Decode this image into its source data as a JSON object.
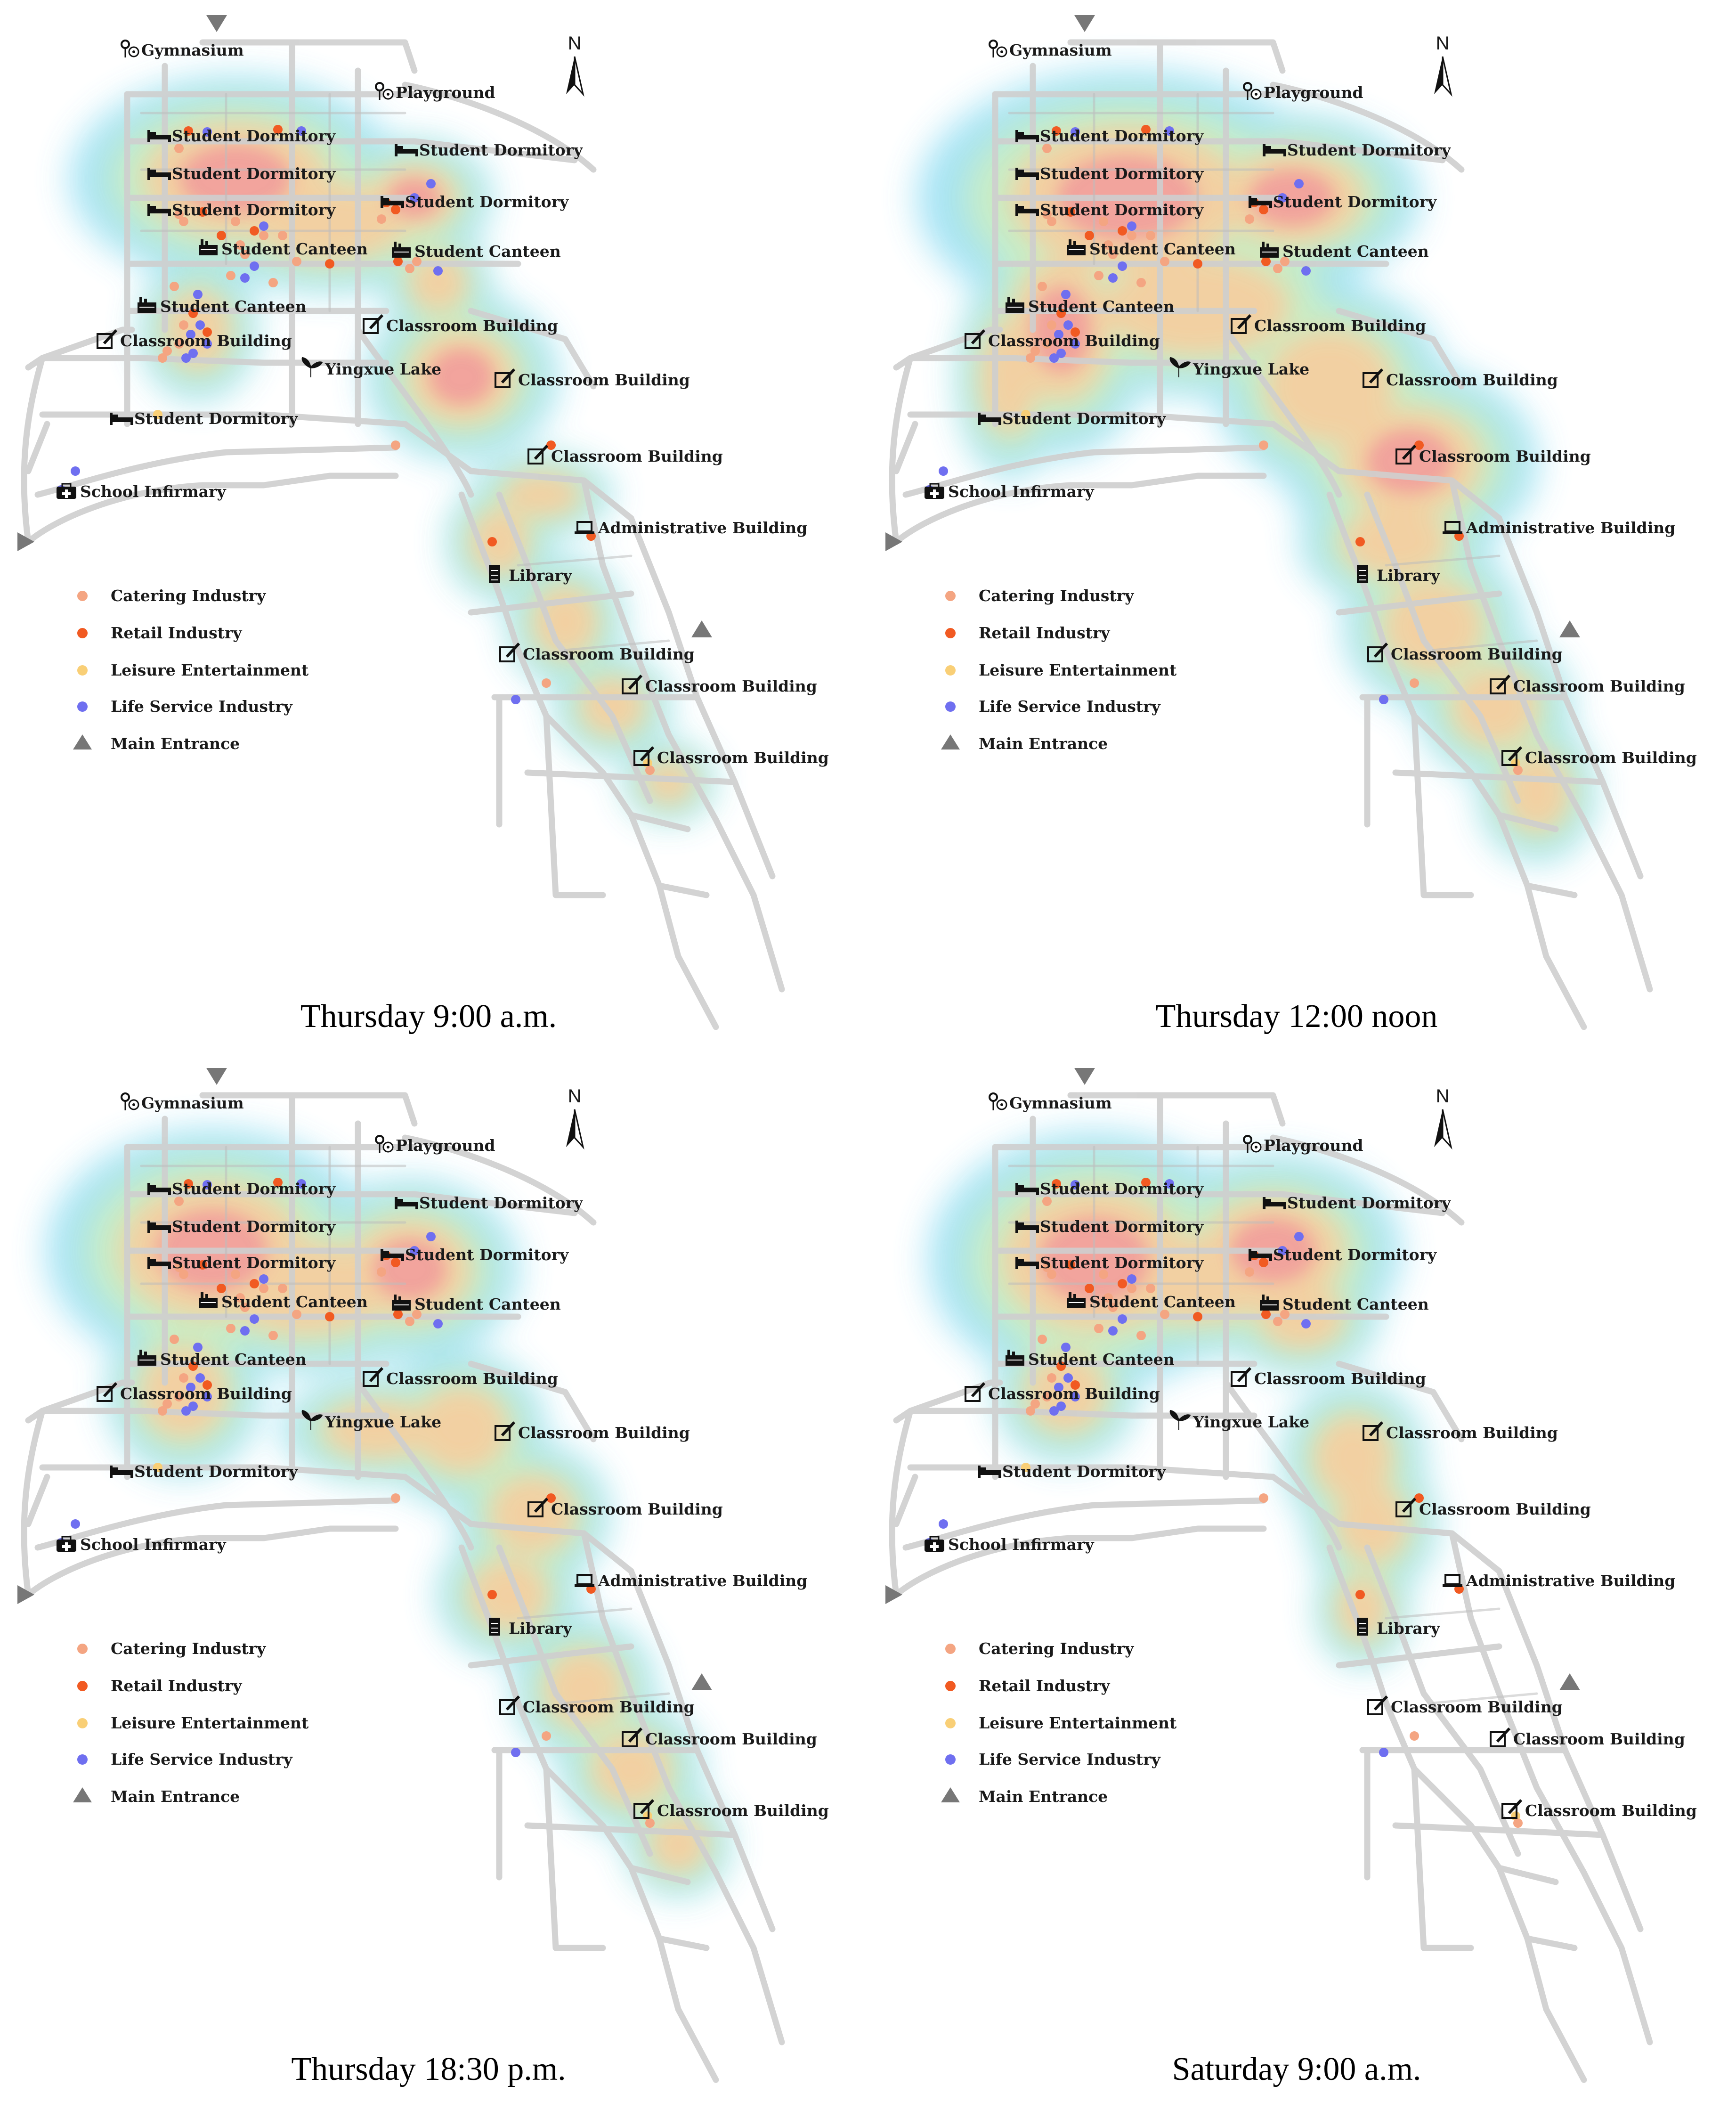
{
  "categories": [
    {
      "key": "catering",
      "label": "Catering Industry",
      "color": "#f4a582"
    },
    {
      "key": "retail",
      "label": "Retail Industry",
      "color": "#f15a22"
    },
    {
      "key": "leisure",
      "label": "Leisure Entertainment",
      "color": "#f9cf76"
    },
    {
      "key": "life",
      "label": "Life Service Industry",
      "color": "#6f6ff0"
    },
    {
      "key": "entrance",
      "label": "Main Entrance",
      "color": "#777777"
    }
  ],
  "landmarks": [
    {
      "id": "gym",
      "label": "Gymnasium",
      "icon": "gym-icon"
    },
    {
      "id": "play",
      "label": "Playground",
      "icon": "playground-icon"
    },
    {
      "id": "dorm1",
      "label": "Student Dormitory",
      "icon": "bed-icon"
    },
    {
      "id": "dorm2",
      "label": "Student Dormitory",
      "icon": "bed-icon"
    },
    {
      "id": "dorm3",
      "label": "Student Dormitory",
      "icon": "bed-icon"
    },
    {
      "id": "dorm4",
      "label": "Student Dormitory",
      "icon": "bed-icon"
    },
    {
      "id": "dorm5",
      "label": "Student Dormitory",
      "icon": "bed-icon"
    },
    {
      "id": "dorm6",
      "label": "Student Dormitory",
      "icon": "bed-icon"
    },
    {
      "id": "cant1",
      "label": "Student Canteen",
      "icon": "canteen-icon"
    },
    {
      "id": "cant2",
      "label": "Student Canteen",
      "icon": "canteen-icon"
    },
    {
      "id": "cant3",
      "label": "Student Canteen",
      "icon": "canteen-icon"
    },
    {
      "id": "class1",
      "label": "Classroom Building",
      "icon": "classroom-icon"
    },
    {
      "id": "class2",
      "label": "Classroom Building",
      "icon": "classroom-icon"
    },
    {
      "id": "lake",
      "label": "Yingxue Lake",
      "icon": "sprout-icon"
    },
    {
      "id": "class3",
      "label": "Classroom Building",
      "icon": "classroom-icon"
    },
    {
      "id": "class4",
      "label": "Classroom Building",
      "icon": "classroom-icon"
    },
    {
      "id": "infirm",
      "label": "School Infirmary",
      "icon": "medical-icon"
    },
    {
      "id": "admin",
      "label": "Administrative Building",
      "icon": "laptop-icon"
    },
    {
      "id": "lib",
      "label": "Library",
      "icon": "books-icon"
    },
    {
      "id": "class5",
      "label": "Classroom Building",
      "icon": "classroom-icon"
    },
    {
      "id": "class6",
      "label": "Classroom Building",
      "icon": "classroom-icon"
    },
    {
      "id": "class7",
      "label": "Classroom Building",
      "icon": "classroom-icon"
    }
  ],
  "north_label": "N",
  "panels": [
    {
      "caption": "Thursday 9:00 a.m.",
      "heat": "t9"
    },
    {
      "caption": "Thursday 12:00 noon",
      "heat": "t12"
    },
    {
      "caption": "Thursday 18:30 p.m.",
      "heat": "t1830"
    },
    {
      "caption": "Saturday 9:00 a.m.",
      "heat": "s9"
    }
  ],
  "colors": {
    "heat_low": "#6fd3f0",
    "heat_mid": "#c8ecb0",
    "heat_high": "#f6c58e",
    "heat_peak": "#ef8a8a",
    "road": "#cfcfcf"
  }
}
